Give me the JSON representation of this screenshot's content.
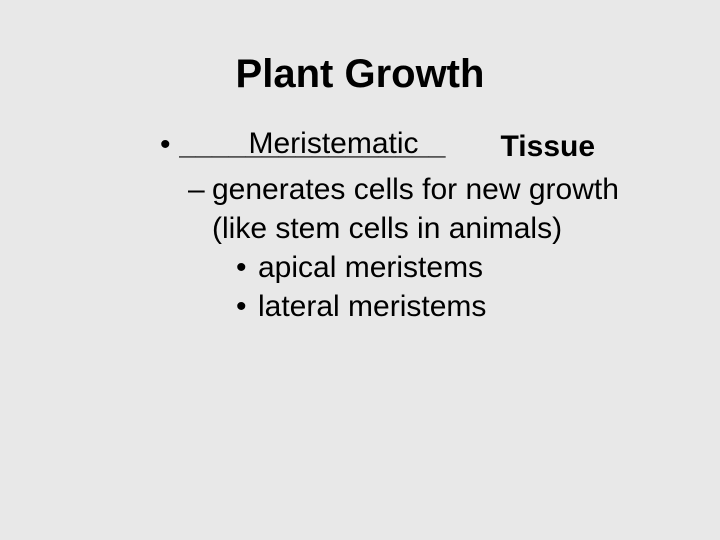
{
  "slide": {
    "title": "Plant Growth",
    "title_fontsize": 40,
    "body_fontsize": 30,
    "background_color": "#e8e8e8",
    "text_color": "#000000",
    "font_family": "Verdana",
    "bullet1": {
      "marker": "•",
      "blank_fill": "Meristematic",
      "blank_underline": "________________",
      "label_after": "Tissue",
      "sub": {
        "marker": "–",
        "text": "generates cells for new growth (like stem cells in animals)"
      },
      "subsub": [
        {
          "marker": "•",
          "text": "apical meristems"
        },
        {
          "marker": "•",
          "text": "lateral meristems"
        }
      ]
    }
  }
}
